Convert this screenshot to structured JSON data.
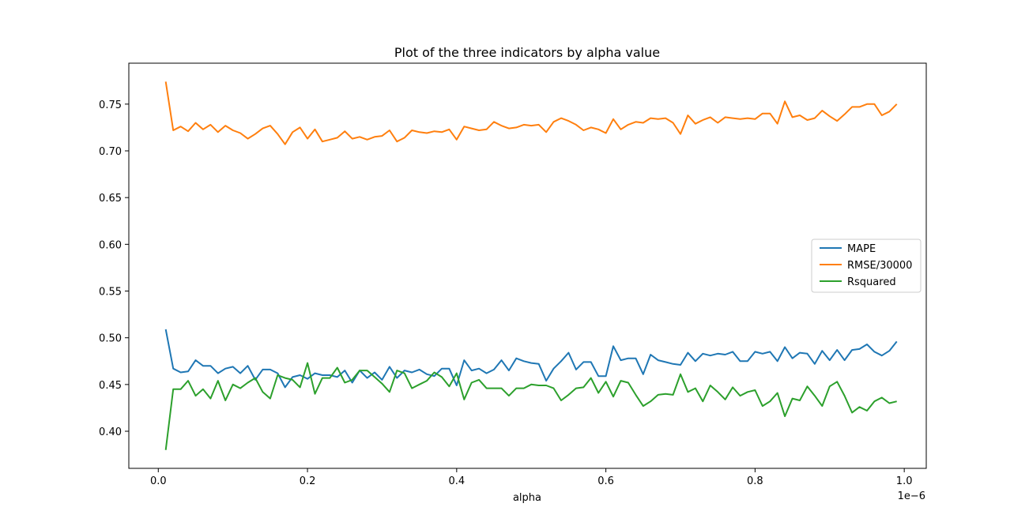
{
  "chart_data": {
    "type": "line",
    "title": "Plot of the three indicators by alpha value",
    "xlabel": "alpha",
    "ylabel": "",
    "x_offset_label": "1e−6",
    "x_scale_factor": 1e-06,
    "xlim": [
      -0.0395,
      1.0295
    ],
    "ylim": [
      0.3603,
      0.7938
    ],
    "x_ticks": [
      0.0,
      0.2,
      0.4,
      0.6,
      0.8,
      1.0
    ],
    "x_tick_labels": [
      "0.0",
      "0.2",
      "0.4",
      "0.6",
      "0.8",
      "1.0"
    ],
    "y_ticks": [
      0.4,
      0.45,
      0.5,
      0.55,
      0.6,
      0.65,
      0.7,
      0.75
    ],
    "y_tick_labels": [
      "0.40",
      "0.45",
      "0.50",
      "0.55",
      "0.60",
      "0.65",
      "0.70",
      "0.75"
    ],
    "grid": false,
    "legend_position": "center-right",
    "x": [
      0.01,
      0.02,
      0.03,
      0.04,
      0.05,
      0.06,
      0.07,
      0.08,
      0.09,
      0.1,
      0.11,
      0.12,
      0.13,
      0.14,
      0.15,
      0.16,
      0.17,
      0.18,
      0.19,
      0.2,
      0.21,
      0.22,
      0.23,
      0.24,
      0.25,
      0.26,
      0.27,
      0.28,
      0.29,
      0.3,
      0.31,
      0.32,
      0.33,
      0.34,
      0.35,
      0.36,
      0.37,
      0.38,
      0.39,
      0.4,
      0.41,
      0.42,
      0.43,
      0.44,
      0.45,
      0.46,
      0.47,
      0.48,
      0.49,
      0.5,
      0.51,
      0.52,
      0.53,
      0.54,
      0.55,
      0.56,
      0.57,
      0.58,
      0.59,
      0.6,
      0.61,
      0.62,
      0.63,
      0.64,
      0.65,
      0.66,
      0.67,
      0.68,
      0.69,
      0.7,
      0.71,
      0.72,
      0.73,
      0.74,
      0.75,
      0.76,
      0.77,
      0.78,
      0.79,
      0.8,
      0.81,
      0.82,
      0.83,
      0.84,
      0.85,
      0.86,
      0.87,
      0.88,
      0.89,
      0.9,
      0.91,
      0.92,
      0.93,
      0.94,
      0.95,
      0.96,
      0.97,
      0.98,
      0.99
    ],
    "series": [
      {
        "name": "MAPE",
        "color": "#1f77b4",
        "values": [
          0.509,
          0.467,
          0.463,
          0.464,
          0.476,
          0.47,
          0.47,
          0.462,
          0.467,
          0.469,
          0.462,
          0.47,
          0.455,
          0.466,
          0.466,
          0.462,
          0.447,
          0.458,
          0.46,
          0.456,
          0.462,
          0.46,
          0.46,
          0.458,
          0.465,
          0.452,
          0.465,
          0.457,
          0.463,
          0.455,
          0.469,
          0.457,
          0.465,
          0.463,
          0.466,
          0.461,
          0.459,
          0.467,
          0.467,
          0.449,
          0.476,
          0.465,
          0.467,
          0.462,
          0.466,
          0.476,
          0.465,
          0.478,
          0.475,
          0.473,
          0.472,
          0.454,
          0.467,
          0.475,
          0.484,
          0.466,
          0.474,
          0.474,
          0.459,
          0.459,
          0.491,
          0.476,
          0.478,
          0.478,
          0.461,
          0.482,
          0.476,
          0.474,
          0.472,
          0.471,
          0.484,
          0.475,
          0.483,
          0.481,
          0.483,
          0.482,
          0.485,
          0.475,
          0.475,
          0.485,
          0.483,
          0.485,
          0.475,
          0.49,
          0.478,
          0.484,
          0.483,
          0.472,
          0.486,
          0.476,
          0.487,
          0.476,
          0.487,
          0.488,
          0.493,
          0.485,
          0.481,
          0.486,
          0.496
        ]
      },
      {
        "name": "RMSE/30000",
        "color": "#ff7f0e",
        "values": [
          0.774,
          0.722,
          0.726,
          0.721,
          0.73,
          0.723,
          0.728,
          0.72,
          0.727,
          0.722,
          0.719,
          0.713,
          0.718,
          0.724,
          0.727,
          0.718,
          0.707,
          0.72,
          0.725,
          0.713,
          0.723,
          0.71,
          0.712,
          0.714,
          0.721,
          0.713,
          0.715,
          0.712,
          0.715,
          0.716,
          0.722,
          0.71,
          0.714,
          0.722,
          0.72,
          0.719,
          0.721,
          0.72,
          0.723,
          0.712,
          0.726,
          0.724,
          0.722,
          0.723,
          0.731,
          0.727,
          0.724,
          0.725,
          0.728,
          0.727,
          0.728,
          0.72,
          0.731,
          0.735,
          0.732,
          0.728,
          0.722,
          0.725,
          0.723,
          0.719,
          0.734,
          0.723,
          0.728,
          0.731,
          0.73,
          0.735,
          0.734,
          0.735,
          0.73,
          0.718,
          0.738,
          0.729,
          0.733,
          0.736,
          0.73,
          0.736,
          0.735,
          0.734,
          0.735,
          0.734,
          0.74,
          0.74,
          0.729,
          0.753,
          0.736,
          0.738,
          0.733,
          0.735,
          0.743,
          0.737,
          0.732,
          0.739,
          0.747,
          0.747,
          0.75,
          0.75,
          0.738,
          0.742,
          0.75
        ]
      },
      {
        "name": "Rsquared",
        "color": "#2ca02c",
        "values": [
          0.38,
          0.445,
          0.445,
          0.454,
          0.438,
          0.445,
          0.435,
          0.454,
          0.433,
          0.45,
          0.446,
          0.452,
          0.457,
          0.442,
          0.435,
          0.46,
          0.457,
          0.455,
          0.447,
          0.473,
          0.44,
          0.457,
          0.457,
          0.468,
          0.452,
          0.455,
          0.465,
          0.465,
          0.458,
          0.451,
          0.442,
          0.465,
          0.462,
          0.446,
          0.45,
          0.454,
          0.463,
          0.458,
          0.448,
          0.462,
          0.434,
          0.452,
          0.455,
          0.446,
          0.446,
          0.446,
          0.438,
          0.446,
          0.446,
          0.45,
          0.449,
          0.449,
          0.446,
          0.433,
          0.439,
          0.446,
          0.447,
          0.457,
          0.441,
          0.453,
          0.437,
          0.454,
          0.452,
          0.439,
          0.427,
          0.432,
          0.439,
          0.44,
          0.439,
          0.461,
          0.442,
          0.446,
          0.432,
          0.449,
          0.442,
          0.434,
          0.447,
          0.438,
          0.442,
          0.444,
          0.427,
          0.432,
          0.441,
          0.416,
          0.435,
          0.433,
          0.448,
          0.438,
          0.427,
          0.448,
          0.453,
          0.438,
          0.42,
          0.426,
          0.422,
          0.432,
          0.436,
          0.43,
          0.432
        ]
      }
    ]
  }
}
